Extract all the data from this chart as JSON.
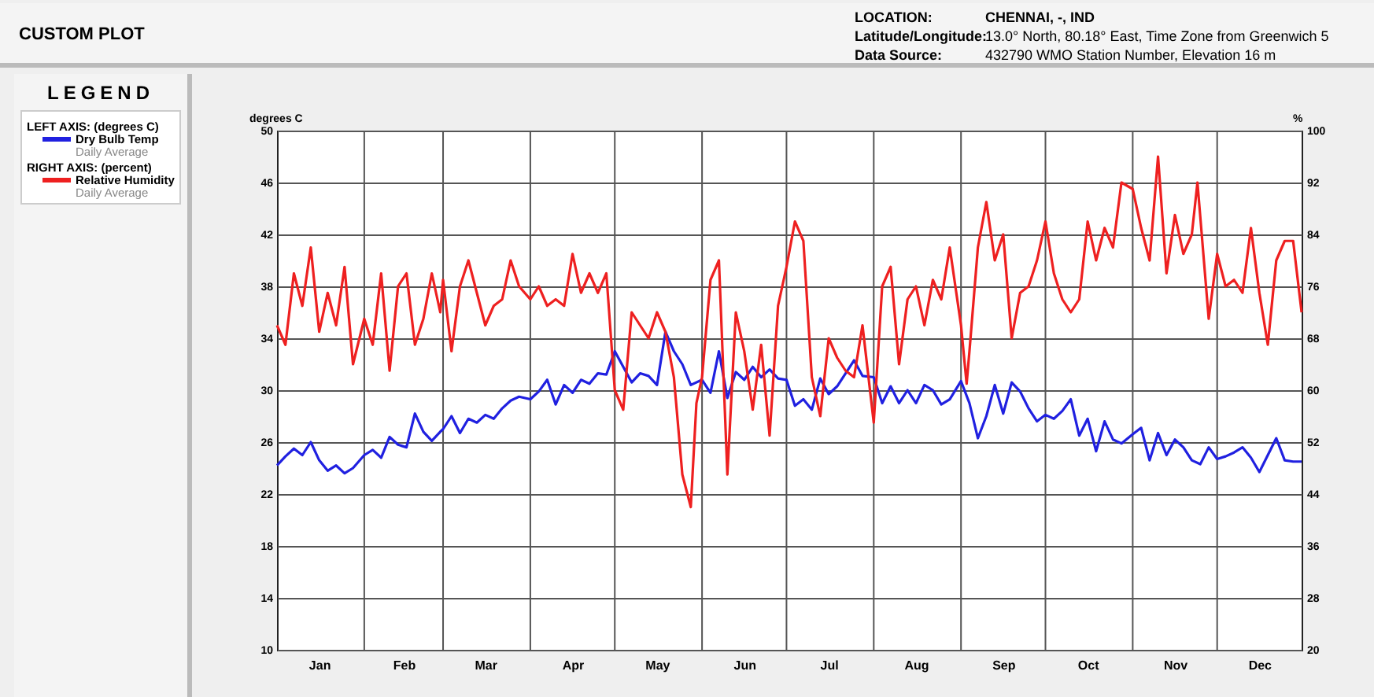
{
  "chart_data": {
    "type": "line",
    "title": "CUSTOM PLOT",
    "legend_title": "LEGEND",
    "ylabel": "degrees C",
    "y2label": "%",
    "annotations": [
      "LOCATION:",
      "CHENNAI, -, IND",
      "Latitude/Longitude:",
      "13.0° North, 80.18° East, Time Zone from Greenwich 5",
      "Data Source:",
      "432790 WMO Station Number, Elevation 16 m",
      "LEFT AXIS: (degrees C)",
      "Daily Average",
      "RIGHT AXIS: (percent)",
      "Daily Average"
    ],
    "xlim": [
      "--01-01",
      "--12-31"
    ],
    "xticks": [
      {
        "value": "--01-16",
        "label": "Jan"
      },
      {
        "value": "--02-01",
        "label": null
      },
      {
        "value": "--02-15",
        "label": "Feb"
      },
      {
        "value": "--03-01",
        "label": null
      },
      {
        "value": "--03-16",
        "label": "Mar"
      },
      {
        "value": "--04-01",
        "label": null
      },
      {
        "value": "--04-16",
        "label": "Apr"
      },
      {
        "value": "--05-01",
        "label": null
      },
      {
        "value": "--05-16",
        "label": "May"
      },
      {
        "value": "--06-01",
        "label": null
      },
      {
        "value": "--06-16",
        "label": "Jun"
      },
      {
        "value": "--07-01",
        "label": null
      },
      {
        "value": "--07-16",
        "label": "Jul"
      },
      {
        "value": "--08-01",
        "label": null
      },
      {
        "value": "--08-16",
        "label": "Aug"
      },
      {
        "value": "--09-01",
        "label": null
      },
      {
        "value": "--09-16",
        "label": "Sep"
      },
      {
        "value": "--10-01",
        "label": null
      },
      {
        "value": "--10-16",
        "label": "Oct"
      },
      {
        "value": "--11-01",
        "label": null
      },
      {
        "value": "--11-16",
        "label": "Nov"
      },
      {
        "value": "--12-01",
        "label": null
      },
      {
        "value": "--12-16",
        "label": "Dec"
      }
    ],
    "ylim": [
      10,
      50
    ],
    "yticks": [
      10,
      14,
      18,
      22,
      26,
      30,
      34,
      38,
      42,
      46,
      50
    ],
    "y2lim": [
      20,
      100
    ],
    "y2ticks": [
      20,
      28,
      36,
      44,
      52,
      60,
      68,
      76,
      84,
      92,
      100
    ],
    "grid": true,
    "legend": "left",
    "line_style": "solid",
    "series": [
      {
        "name": "Relative Humidity",
        "color": "#ee2020",
        "axis": "y2",
        "x": [
          "--01-01",
          "--01-04",
          "--01-07",
          "--01-10",
          "--01-13",
          "--01-16",
          "--01-19",
          "--01-22",
          "--01-25",
          "--01-28",
          "--02-01",
          "--02-04",
          "--02-07",
          "--02-10",
          "--02-13",
          "--02-16",
          "--02-19",
          "--02-22",
          "--02-25",
          "--02-28",
          "--03-01",
          "--03-04",
          "--03-07",
          "--03-10",
          "--03-13",
          "--03-16",
          "--03-19",
          "--03-22",
          "--03-25",
          "--03-28",
          "--04-01",
          "--04-04",
          "--04-07",
          "--04-10",
          "--04-13",
          "--04-16",
          "--04-19",
          "--04-22",
          "--04-25",
          "--04-28",
          "--05-01",
          "--05-04",
          "--05-07",
          "--05-10",
          "--05-13",
          "--05-16",
          "--05-19",
          "--05-22",
          "--05-25",
          "--05-28",
          "--05-30",
          "--06-01",
          "--06-04",
          "--06-07",
          "--06-10",
          "--06-13",
          "--06-16",
          "--06-19",
          "--06-22",
          "--06-25",
          "--06-28",
          "--07-01",
          "--07-04",
          "--07-07",
          "--07-10",
          "--07-13",
          "--07-16",
          "--07-19",
          "--07-22",
          "--07-25",
          "--07-28",
          "--08-01",
          "--08-04",
          "--08-07",
          "--08-10",
          "--08-13",
          "--08-16",
          "--08-19",
          "--08-22",
          "--08-25",
          "--08-28",
          "--09-01",
          "--09-03",
          "--09-04",
          "--09-07",
          "--09-10",
          "--09-13",
          "--09-16",
          "--09-19",
          "--09-22",
          "--09-25",
          "--09-28",
          "--10-01",
          "--10-04",
          "--10-07",
          "--10-10",
          "--10-13",
          "--10-16",
          "--10-19",
          "--10-22",
          "--10-25",
          "--10-28",
          "--11-01",
          "--11-04",
          "--11-07",
          "--11-10",
          "--11-13",
          "--11-16",
          "--11-19",
          "--11-22",
          "--11-24",
          "--11-28",
          "--12-01",
          "--12-04",
          "--12-07",
          "--12-10",
          "--12-13",
          "--12-16",
          "--12-19",
          "--12-22",
          "--12-25",
          "--12-28",
          "--12-31"
        ],
        "values": [
          70,
          67,
          78,
          73,
          82,
          69,
          75,
          70,
          79,
          64,
          71,
          67,
          78,
          63,
          76,
          78,
          67,
          71,
          78,
          72,
          77,
          66,
          76,
          80,
          75,
          70,
          73,
          74,
          80,
          76,
          74,
          76,
          73,
          74,
          73,
          81,
          75,
          78,
          75,
          78,
          60,
          57,
          72,
          70,
          68,
          72,
          69,
          62,
          47,
          42,
          58,
          62,
          77,
          80,
          47,
          72,
          66,
          57,
          67,
          53,
          73,
          79,
          86,
          83,
          62,
          56,
          68,
          65,
          63,
          62,
          70,
          55,
          76,
          79,
          64,
          74,
          76,
          70,
          77,
          74,
          82,
          70,
          61,
          66,
          82,
          89,
          80,
          84,
          68,
          75,
          76,
          80,
          86,
          78,
          74,
          72,
          74,
          86,
          80,
          85,
          82,
          92,
          91,
          85,
          80,
          96,
          78,
          87,
          81,
          84,
          92,
          71,
          81,
          76,
          77,
          75,
          85,
          75,
          67,
          80,
          83,
          83,
          72
        ]
      },
      {
        "name": "Dry Bulb Temp",
        "color": "#2020e0",
        "x": [
          "--01-01",
          "--01-04",
          "--01-07",
          "--01-10",
          "--01-13",
          "--01-16",
          "--01-19",
          "--01-22",
          "--01-25",
          "--01-28",
          "--02-01",
          "--02-04",
          "--02-07",
          "--02-10",
          "--02-13",
          "--02-16",
          "--02-19",
          "--02-22",
          "--02-25",
          "--02-28",
          "--03-01",
          "--03-04",
          "--03-07",
          "--03-10",
          "--03-13",
          "--03-16",
          "--03-19",
          "--03-22",
          "--03-25",
          "--03-28",
          "--04-01",
          "--04-04",
          "--04-07",
          "--04-10",
          "--04-13",
          "--04-16",
          "--04-19",
          "--04-22",
          "--04-25",
          "--04-28",
          "--05-01",
          "--05-04",
          "--05-07",
          "--05-10",
          "--05-13",
          "--05-16",
          "--05-19",
          "--05-22",
          "--05-25",
          "--05-28",
          "--06-01",
          "--06-04",
          "--06-07",
          "--06-10",
          "--06-13",
          "--06-16",
          "--06-19",
          "--06-22",
          "--06-25",
          "--06-28",
          "--07-01",
          "--07-04",
          "--07-07",
          "--07-10",
          "--07-13",
          "--07-16",
          "--07-19",
          "--07-22",
          "--07-25",
          "--07-28",
          "--08-01",
          "--08-04",
          "--08-07",
          "--08-10",
          "--08-13",
          "--08-16",
          "--08-19",
          "--08-22",
          "--08-25",
          "--08-28",
          "--09-01",
          "--09-04",
          "--09-07",
          "--09-10",
          "--09-13",
          "--09-16",
          "--09-19",
          "--09-22",
          "--09-25",
          "--09-28",
          "--10-01",
          "--10-04",
          "--10-07",
          "--10-10",
          "--10-13",
          "--10-16",
          "--10-19",
          "--10-22",
          "--10-25",
          "--10-28",
          "--11-01",
          "--11-04",
          "--11-07",
          "--11-10",
          "--11-13",
          "--11-16",
          "--11-19",
          "--11-22",
          "--11-25",
          "--11-28",
          "--12-01",
          "--12-04",
          "--12-07",
          "--12-10",
          "--12-13",
          "--12-16",
          "--12-19",
          "--12-22",
          "--12-25",
          "--12-28",
          "--12-31"
        ],
        "values": [
          24.2,
          24.9,
          25.5,
          25.0,
          26.0,
          24.6,
          23.8,
          24.2,
          23.6,
          24.0,
          25.0,
          25.4,
          24.8,
          26.4,
          25.8,
          25.6,
          28.2,
          26.8,
          26.1,
          26.8,
          27.0,
          28.0,
          26.7,
          27.8,
          27.5,
          28.1,
          27.8,
          28.6,
          29.2,
          29.5,
          29.3,
          29.9,
          30.8,
          28.9,
          30.4,
          29.8,
          30.8,
          30.5,
          31.3,
          31.2,
          33.0,
          31.8,
          30.6,
          31.3,
          31.1,
          30.4,
          34.5,
          33.0,
          32.0,
          30.4,
          30.8,
          29.8,
          33.0,
          29.4,
          31.4,
          30.8,
          31.8,
          31.0,
          31.6,
          30.9,
          30.8,
          28.8,
          29.3,
          28.5,
          30.9,
          29.7,
          30.3,
          31.3,
          32.3,
          31.1,
          31.0,
          29.0,
          30.3,
          29.0,
          30.0,
          29.0,
          30.4,
          30.0,
          28.9,
          29.3,
          30.7,
          29.0,
          26.3,
          28.0,
          30.4,
          28.2,
          30.6,
          29.9,
          28.6,
          27.6,
          28.1,
          27.8,
          28.4,
          29.3,
          26.5,
          27.8,
          25.3,
          27.6,
          26.2,
          25.9,
          26.6,
          27.1,
          24.6,
          26.7,
          25.0,
          26.2,
          25.6,
          24.6,
          24.3,
          25.6,
          24.7,
          24.9,
          25.2,
          25.6,
          24.8,
          23.7,
          25.0,
          26.3,
          24.6,
          24.5,
          24.5
        ]
      }
    ]
  }
}
